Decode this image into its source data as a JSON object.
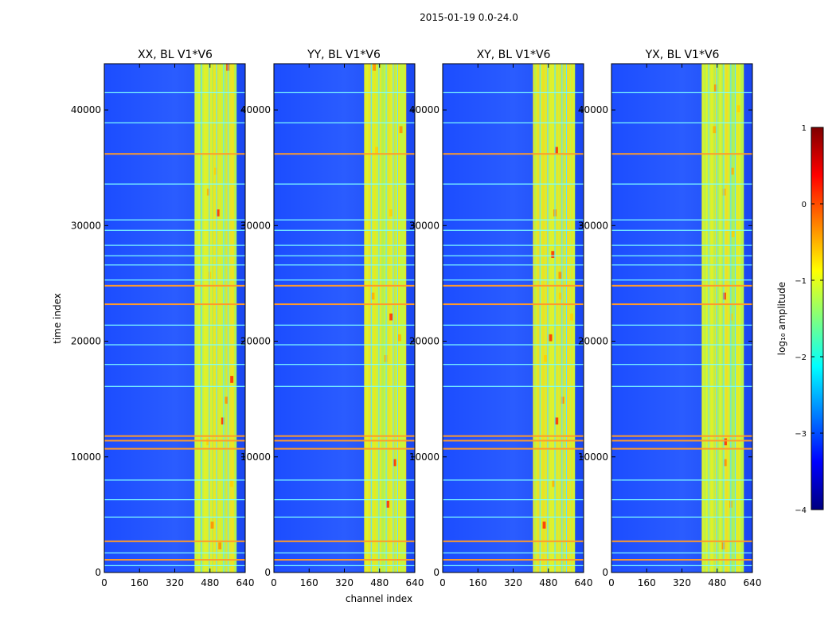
{
  "chart_data": {
    "type": "heatmap",
    "suptitle": "2015-01-19 0.0-24.0",
    "xlabel": "channel index",
    "ylabel": "time index",
    "xlim": [
      0,
      640
    ],
    "ylim": [
      0,
      44000
    ],
    "xticks": [
      0,
      160,
      320,
      480,
      640
    ],
    "yticks": [
      0,
      10000,
      20000,
      30000,
      40000
    ],
    "panels": [
      {
        "title": "XX, BL V1*V6",
        "id": "xx"
      },
      {
        "title": "YY, BL V1*V6",
        "id": "yy"
      },
      {
        "title": "XY, BL V1*V6",
        "id": "xy"
      },
      {
        "title": "YX, BL V1*V6",
        "id": "yx"
      }
    ],
    "colorbar": {
      "label": "log₁₀ amplitude",
      "min": -4,
      "max": 1,
      "ticks": [
        1,
        0,
        -1,
        -2,
        -3,
        -4
      ],
      "tick_labels": [
        "1",
        "0",
        "−1",
        "−2",
        "−3",
        "−4"
      ],
      "colormap": [
        "#00007f",
        "#0000ff",
        "#007fff",
        "#00ffff",
        "#7fff7f",
        "#ffff00",
        "#ff7f00",
        "#ff0000",
        "#7f0000"
      ]
    },
    "active_channel_range": [
      410,
      600
    ],
    "active_channel_gaps": [
      440,
      475,
      508,
      540,
      560
    ],
    "rfi_rows_orange": [
      36200,
      24800,
      23200,
      11800,
      11400,
      10700,
      2700,
      1100
    ],
    "rfi_rows_cyan": [
      41500,
      38900,
      33600,
      30500,
      29600,
      28300,
      27400,
      26600,
      25300,
      21400,
      19700,
      18000,
      16100,
      8000,
      6300,
      4800,
      1700,
      600
    ]
  }
}
